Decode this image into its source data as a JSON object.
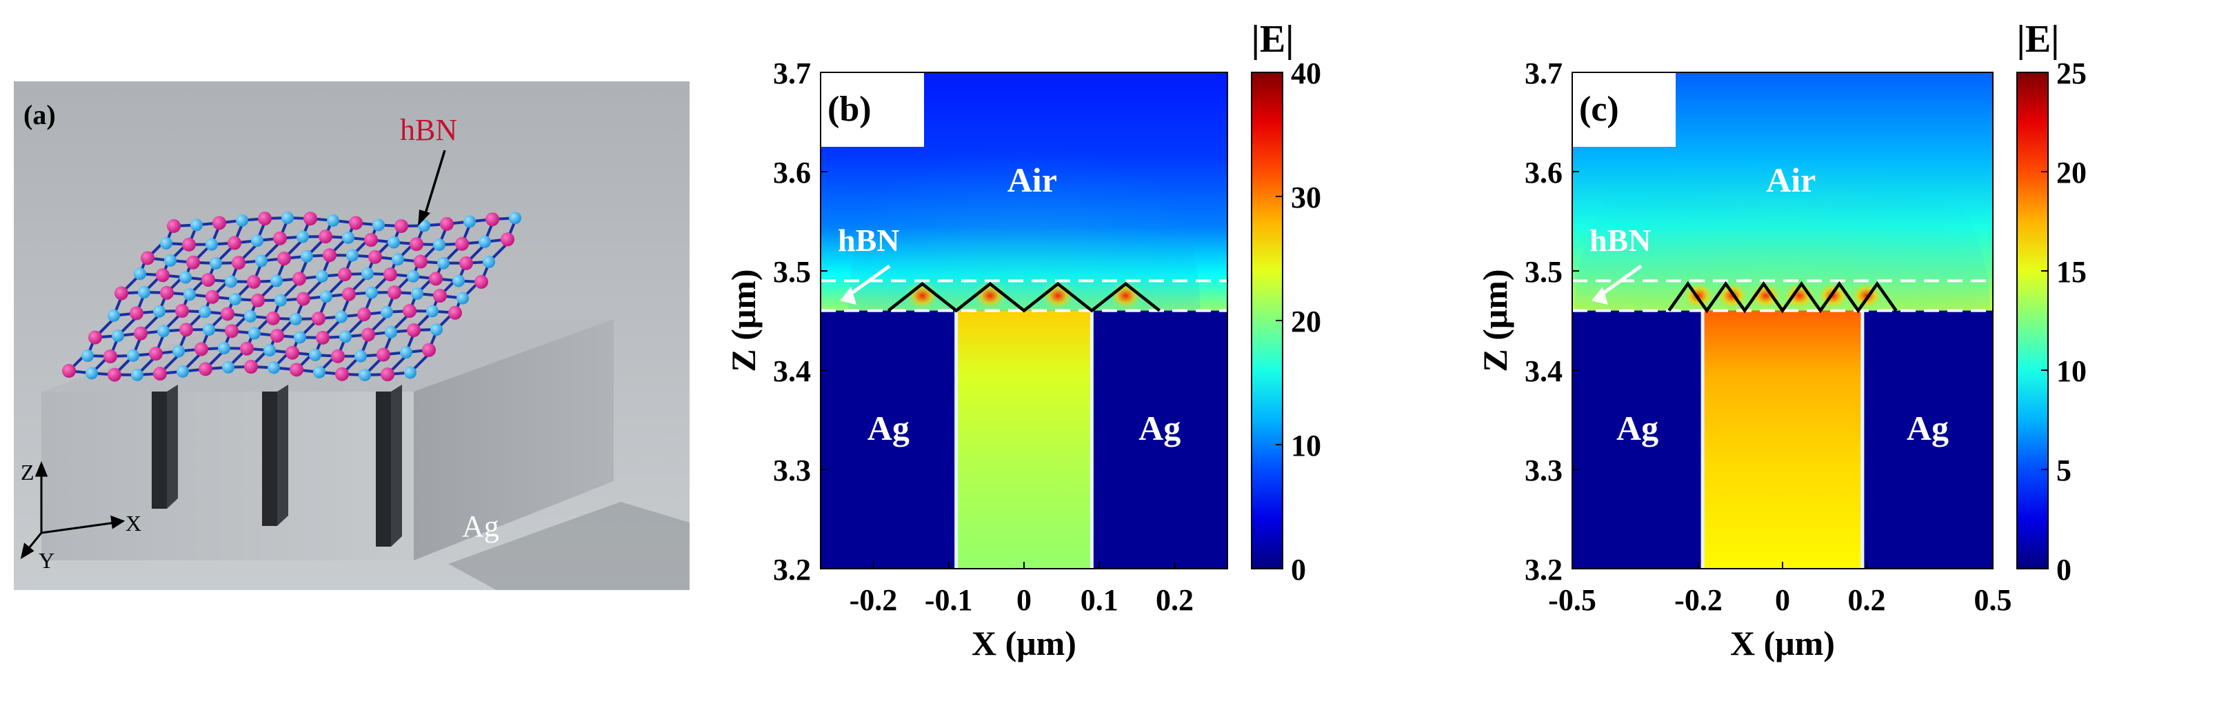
{
  "panel_a": {
    "label": "(a)",
    "hbn_label": "hBN",
    "ag_label": "Ag",
    "axes": {
      "z": "Z",
      "x": "X",
      "y": "Y"
    }
  },
  "colors": {
    "jet_stops": [
      "#00007f",
      "#0000ff",
      "#007fff",
      "#00ffff",
      "#7fff7f",
      "#ffff00",
      "#ff7f00",
      "#ff0000",
      "#7f0000"
    ],
    "hbn_label_color": "#c8102e",
    "atom_magenta": "#e0148c",
    "atom_cyan": "#19a9ee",
    "bond_blue": "#1a2fa0",
    "block_gray": "#a4a8ad"
  },
  "chart_data": [
    {
      "type": "heatmap",
      "panel_label": "(b)",
      "xlabel": "X (μm)",
      "ylabel": "Z (μm)",
      "xlim": [
        -0.27,
        0.27
      ],
      "ylim": [
        3.2,
        3.7
      ],
      "xticks": [
        "-0.2",
        "-0.1",
        "0",
        "0.1",
        "0.2"
      ],
      "xtick_values": [
        -0.2,
        -0.1,
        0,
        0.1,
        0.2
      ],
      "yticks": [
        "3.2",
        "3.3",
        "3.4",
        "3.5",
        "3.6",
        "3.7"
      ],
      "colorbar": {
        "title": "|E|",
        "min": 0,
        "max": 40,
        "ticks": [
          "0",
          "10",
          "20",
          "30",
          "40"
        ]
      },
      "regions": {
        "air": "Air",
        "metal_left": "Ag",
        "metal_right": "Ag",
        "layer": "hBN"
      },
      "hbn_layer_z": [
        3.46,
        3.49
      ],
      "groove_x": [
        -0.09,
        0.09
      ],
      "zigzag_x": [
        -0.18,
        -0.135,
        -0.09,
        -0.045,
        0.0,
        0.045,
        0.09,
        0.135,
        0.18
      ],
      "groove_field_value": 22,
      "hotspot_x": [
        -0.135,
        -0.045,
        0.045,
        0.135
      ],
      "hotspot_value": 34
    },
    {
      "type": "heatmap",
      "panel_label": "(c)",
      "xlabel": "X (μm)",
      "ylabel": "Z (μm)",
      "xlim": [
        -0.5,
        0.5
      ],
      "ylim": [
        3.2,
        3.7
      ],
      "xticks": [
        "-0.5",
        "-0.2",
        "0",
        "0.2",
        "0.5"
      ],
      "xtick_values": [
        -0.5,
        -0.2,
        0,
        0.2,
        0.5
      ],
      "yticks": [
        "3.2",
        "3.3",
        "3.4",
        "3.5",
        "3.6",
        "3.7"
      ],
      "colorbar": {
        "title": "|E|",
        "min": 0,
        "max": 25,
        "ticks": [
          "0",
          "5",
          "10",
          "15",
          "20",
          "25"
        ]
      },
      "regions": {
        "air": "Air",
        "metal_left": "Ag",
        "metal_right": "Ag",
        "layer": "hBN"
      },
      "hbn_layer_z": [
        3.46,
        3.49
      ],
      "groove_x": [
        -0.19,
        0.19
      ],
      "zigzag_x": [
        -0.27,
        -0.225,
        -0.18,
        -0.135,
        -0.09,
        -0.045,
        0.0,
        0.045,
        0.09,
        0.135,
        0.18,
        0.225,
        0.27
      ],
      "groove_field_value": 16.5,
      "hotspot_x": [
        -0.2,
        -0.12,
        -0.04,
        0.04,
        0.12,
        0.2
      ],
      "hotspot_value": 21
    }
  ]
}
